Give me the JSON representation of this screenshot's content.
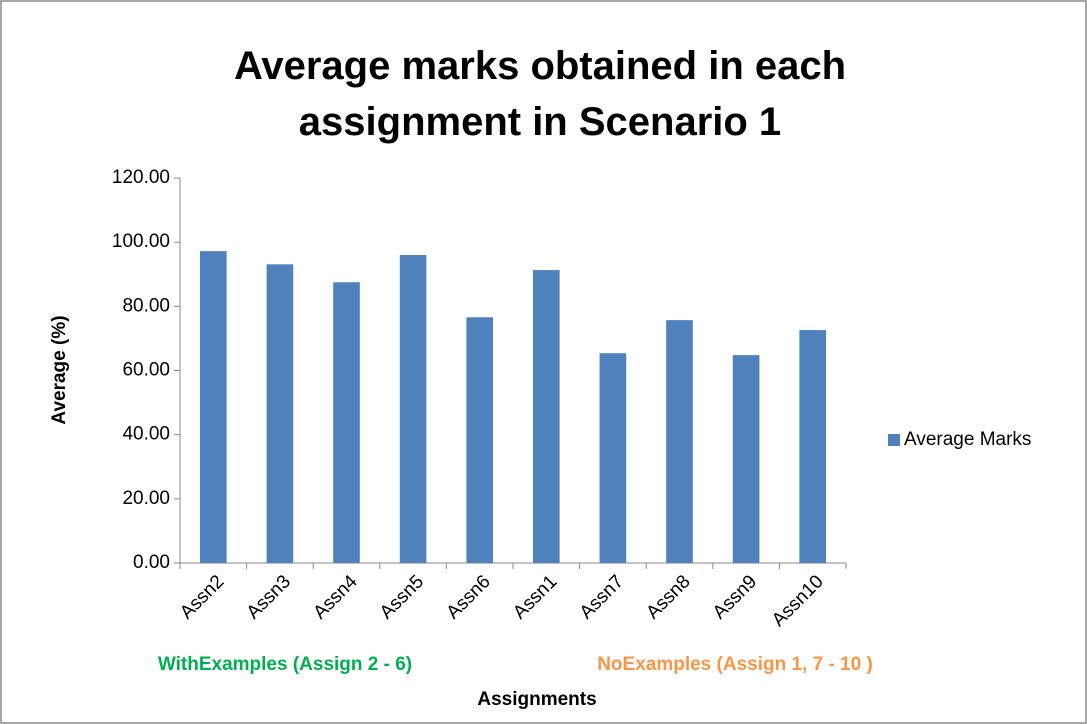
{
  "chart_data": {
    "type": "bar",
    "title": "Average marks obtained in each assignment in Scenario 1",
    "x_label": "Assignments",
    "y_label": "Average (%)",
    "categories": [
      "Assn2",
      "Assn3",
      "Assn4",
      "Assn5",
      "Assn6",
      "Assn1",
      "Assn7",
      "Assn8",
      "Assn9",
      "Assn10"
    ],
    "series": [
      {
        "name": "Average Marks",
        "color": "#4f81bd",
        "values": [
          97.2,
          93.1,
          87.5,
          96.0,
          76.6,
          91.3,
          65.4,
          75.7,
          64.8,
          72.6
        ]
      }
    ],
    "ylim": [
      0,
      120
    ],
    "yticks": [
      {
        "value": 0,
        "label": "0.00"
      },
      {
        "value": 20,
        "label": "20.00"
      },
      {
        "value": 40,
        "label": "40.00"
      },
      {
        "value": 60,
        "label": "60.00"
      },
      {
        "value": 80,
        "label": "80.00"
      },
      {
        "value": 100,
        "label": "100.00"
      },
      {
        "value": 120,
        "label": "120.00"
      }
    ],
    "legend": "right",
    "annotations": [
      {
        "text": "WithExamples (Assign  2 - 6)",
        "color": "#00b050"
      },
      {
        "text": "NoExamples (Assign  1, 7 - 10 )",
        "color": "#f79646"
      }
    ]
  }
}
